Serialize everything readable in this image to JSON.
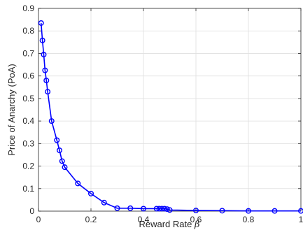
{
  "chart_data": {
    "type": "line",
    "xlabel": "Reward Rate",
    "xlabel_symbol": "β",
    "ylabel": "Price of Anarchy (PoA)",
    "xlim": [
      0,
      1
    ],
    "ylim": [
      0,
      0.9
    ],
    "xticks": [
      0,
      0.2,
      0.4,
      0.6,
      0.8,
      1
    ],
    "xtick_labels": [
      "0",
      "0.2",
      "0.4",
      "0.6",
      "0.8",
      "1"
    ],
    "yticks": [
      0,
      0.1,
      0.2,
      0.3,
      0.4,
      0.5,
      0.6,
      0.7,
      0.8,
      0.9
    ],
    "ytick_labels": [
      "0",
      "0.1",
      "0.2",
      "0.3",
      "0.4",
      "0.5",
      "0.6",
      "0.7",
      "0.8",
      "0.9"
    ],
    "grid": true,
    "marker": "circle",
    "color": "#0000ff",
    "series": [
      {
        "x": [
          0.01,
          0.015,
          0.02,
          0.025,
          0.03,
          0.035,
          0.05,
          0.07,
          0.08,
          0.09,
          0.1,
          0.15,
          0.2,
          0.25,
          0.3,
          0.35,
          0.4,
          0.45,
          0.46,
          0.47,
          0.48,
          0.49,
          0.5,
          0.6,
          0.7,
          0.8,
          0.9,
          1.0
        ],
        "y": [
          0.835,
          0.758,
          0.695,
          0.625,
          0.58,
          0.53,
          0.4,
          0.315,
          0.27,
          0.222,
          0.195,
          0.123,
          0.078,
          0.038,
          0.013,
          0.013,
          0.011,
          0.011,
          0.011,
          0.011,
          0.011,
          0.009,
          0.005,
          0.003,
          0.002,
          0.001,
          0.001,
          0.001
        ]
      }
    ]
  }
}
